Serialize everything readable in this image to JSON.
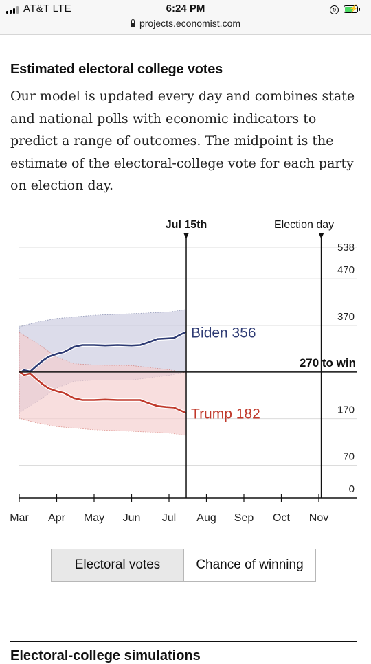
{
  "status_bar": {
    "carrier": "AT&T  LTE",
    "time": "6:24 PM",
    "url": "projects.economist.com",
    "battery_color": "#4cd964"
  },
  "section": {
    "title": "Estimated electoral college votes",
    "description": "Our model is updated every day and combines state and national polls with economic indicators to predict a range of outcomes. The midpoint is the estimate of the electoral-college vote for each party on election day."
  },
  "chart_data": {
    "type": "line",
    "x_ticks": [
      "Mar",
      "Apr",
      "May",
      "Jun",
      "Jul",
      "Aug",
      "Sep",
      "Oct",
      "Nov"
    ],
    "y_ticks": [
      538,
      470,
      370,
      170,
      70,
      0
    ],
    "ylim": [
      0,
      538
    ],
    "threshold": {
      "value": 270,
      "label": "270 to win"
    },
    "markers": [
      {
        "label": "Jul 15th",
        "x": "Jul 15"
      },
      {
        "label": "Election day",
        "x": "Nov 3"
      }
    ],
    "series": [
      {
        "name": "Biden",
        "end_label": "Biden 356",
        "color": "#2e3b74",
        "band_color": "#c9c9de",
        "points": [
          [
            "Mar 1",
            267
          ],
          [
            "Mar 5",
            274
          ],
          [
            "Mar 10",
            271
          ],
          [
            "Mar 15",
            283
          ],
          [
            "Mar 20",
            294
          ],
          [
            "Mar 25",
            303
          ],
          [
            "Apr 1",
            309
          ],
          [
            "Apr 7",
            313
          ],
          [
            "Apr 15",
            324
          ],
          [
            "Apr 22",
            328
          ],
          [
            "May 1",
            328
          ],
          [
            "May 10",
            327
          ],
          [
            "May 20",
            328
          ],
          [
            "Jun 1",
            327
          ],
          [
            "Jun 8",
            328
          ],
          [
            "Jun 15",
            334
          ],
          [
            "Jun 22",
            341
          ],
          [
            "Jun 29",
            342
          ],
          [
            "Jul 5",
            343
          ],
          [
            "Jul 10",
            350
          ],
          [
            "Jul 15",
            356
          ]
        ],
        "band_upper": [
          [
            "Mar 1",
            367
          ],
          [
            "Mar 15",
            377
          ],
          [
            "Apr 1",
            385
          ],
          [
            "May 1",
            392
          ],
          [
            "Jun 1",
            395
          ],
          [
            "Jul 1",
            399
          ],
          [
            "Jul 15",
            404
          ]
        ],
        "band_lower": [
          [
            "Mar 1",
            183
          ],
          [
            "Mar 15",
            205
          ],
          [
            "Apr 1",
            236
          ],
          [
            "Apr 15",
            250
          ],
          [
            "May 1",
            253
          ],
          [
            "Jun 1",
            253
          ],
          [
            "Jul 1",
            263
          ],
          [
            "Jul 15",
            270
          ]
        ]
      },
      {
        "name": "Trump",
        "end_label": "Trump 182",
        "color": "#c0392b",
        "band_color": "#f5cccc",
        "points": [
          [
            "Mar 1",
            271
          ],
          [
            "Mar 5",
            264
          ],
          [
            "Mar 10",
            267
          ],
          [
            "Mar 15",
            255
          ],
          [
            "Mar 20",
            244
          ],
          [
            "Mar 25",
            235
          ],
          [
            "Apr 1",
            229
          ],
          [
            "Apr 7",
            225
          ],
          [
            "Apr 15",
            214
          ],
          [
            "Apr 22",
            210
          ],
          [
            "May 1",
            210
          ],
          [
            "May 10",
            211
          ],
          [
            "May 20",
            210
          ],
          [
            "Jun 1",
            210
          ],
          [
            "Jun 8",
            210
          ],
          [
            "Jun 15",
            203
          ],
          [
            "Jun 22",
            197
          ],
          [
            "Jun 29",
            195
          ],
          [
            "Jul 5",
            194
          ],
          [
            "Jul 10",
            188
          ],
          [
            "Jul 15",
            182
          ]
        ],
        "band_upper": [
          [
            "Mar 1",
            355
          ],
          [
            "Mar 15",
            333
          ],
          [
            "Apr 1",
            302
          ],
          [
            "Apr 15",
            288
          ],
          [
            "May 1",
            285
          ],
          [
            "Jun 1",
            284
          ],
          [
            "Jul 1",
            275
          ],
          [
            "Jul 15",
            268
          ]
        ],
        "band_lower": [
          [
            "Mar 1",
            171
          ],
          [
            "Mar 15",
            161
          ],
          [
            "Apr 1",
            153
          ],
          [
            "May 1",
            146
          ],
          [
            "Jun 1",
            143
          ],
          [
            "Jul 1",
            139
          ],
          [
            "Jul 15",
            134
          ]
        ]
      }
    ]
  },
  "toggle": {
    "electoral_votes": "Electoral votes",
    "chance_of_winning": "Chance of winning"
  },
  "next_section": {
    "title": "Electoral-college simulations"
  }
}
